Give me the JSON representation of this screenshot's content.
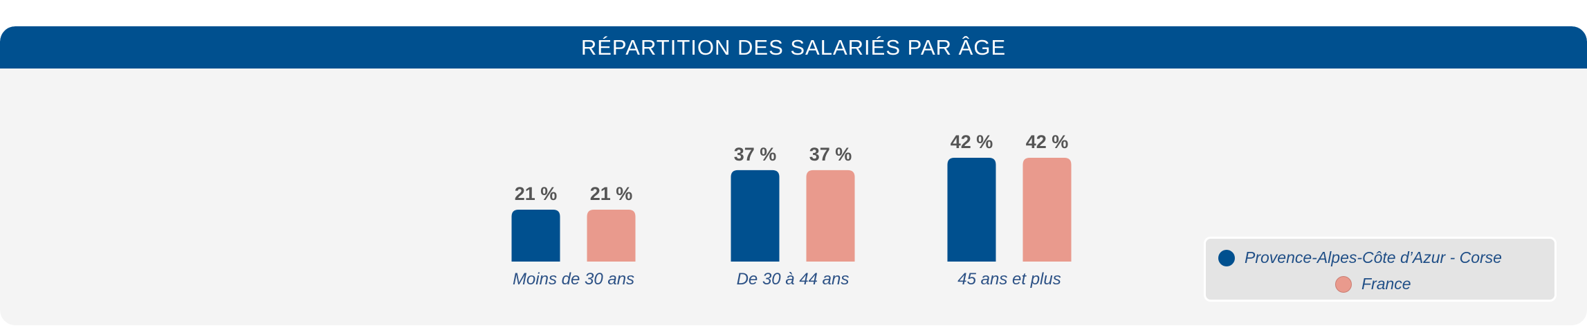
{
  "chart_data": {
    "type": "bar",
    "title": "RÉPARTITION DES SALARIÉS PAR ÂGE",
    "categories": [
      "Moins de 30 ans",
      "De 30 à 44 ans",
      "45 ans et plus"
    ],
    "series": [
      {
        "name": "Provence-Alpes-Côte d’Azur - Corse",
        "values": [
          21,
          37,
          42
        ],
        "labels": [
          "21 %",
          "37 %",
          "42 %"
        ],
        "color": "#00508f"
      },
      {
        "name": "France",
        "values": [
          21,
          37,
          42
        ],
        "labels": [
          "21 %",
          "37 %",
          "42 %"
        ],
        "color": "#e99a8d"
      }
    ],
    "unit": "%",
    "ylim": [
      0,
      42
    ],
    "grid": false,
    "legend": "bottom-right"
  }
}
